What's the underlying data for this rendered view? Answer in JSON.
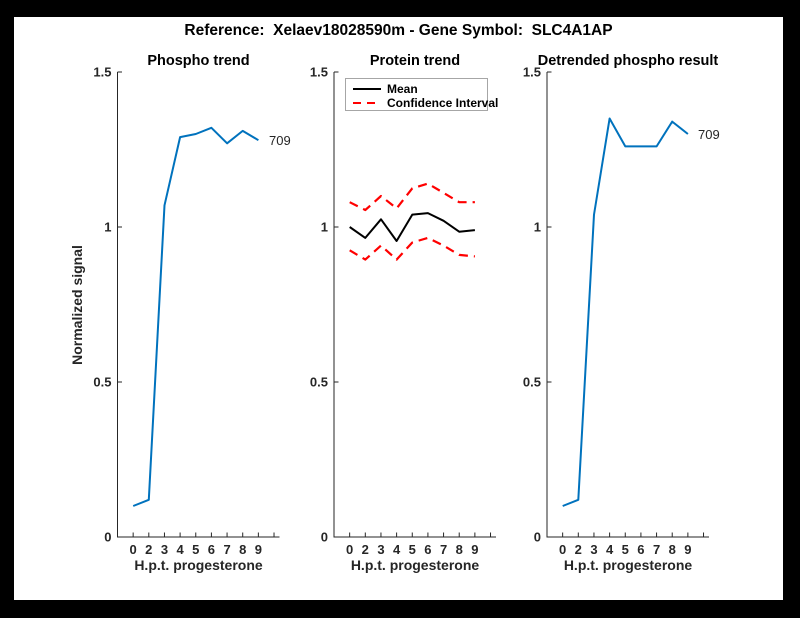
{
  "figure": {
    "title": "Reference:  Xelaev18028590m - Gene Symbol:  SLC4A1AP",
    "background": "#ffffff",
    "frame_color": "#000000",
    "axis_color": "#262626",
    "accent_blue": "#0072BD",
    "accent_red": "#ff0000",
    "accent_black": "#000000"
  },
  "chart_data": [
    {
      "type": "line",
      "title": "Phospho trend",
      "xlabel": "H.p.t. progesterone",
      "ylabel": "Normalized signal",
      "x_tick_labels": [
        "0",
        "2",
        "3",
        "4",
        "5",
        "6",
        "7",
        "8",
        "9"
      ],
      "y_tick_labels": [
        "0",
        "0.5",
        "1",
        "1.5"
      ],
      "y_ticks": [
        0,
        0.5,
        1,
        1.5
      ],
      "ylim": [
        0,
        1.5
      ],
      "grid": false,
      "end_label": "709",
      "series": [
        {
          "name": "phospho",
          "color": "#0072BD",
          "style": "solid",
          "values": [
            0.1,
            0.12,
            1.07,
            1.29,
            1.3,
            1.32,
            1.27,
            1.31,
            1.28
          ]
        }
      ]
    },
    {
      "type": "line",
      "title": "Protein trend",
      "xlabel": "H.p.t. progesterone",
      "ylabel": "",
      "x_tick_labels": [
        "0",
        "2",
        "3",
        "4",
        "5",
        "6",
        "7",
        "8",
        "9"
      ],
      "y_tick_labels": [
        "0",
        "0.5",
        "1",
        "1.5"
      ],
      "y_ticks": [
        0,
        0.5,
        1,
        1.5
      ],
      "ylim": [
        0,
        1.5
      ],
      "grid": false,
      "legend": [
        {
          "label": "Mean",
          "color": "#000000",
          "style": "solid"
        },
        {
          "label": "Confidence Interval",
          "color": "#ff0000",
          "style": "dashed"
        }
      ],
      "legend_position": "upper-left",
      "series": [
        {
          "name": "mean",
          "color": "#000000",
          "style": "solid",
          "values": [
            1.0,
            0.965,
            1.025,
            0.955,
            1.04,
            1.045,
            1.02,
            0.985,
            0.99
          ]
        },
        {
          "name": "ci-upper",
          "color": "#ff0000",
          "style": "dashed",
          "values": [
            1.08,
            1.055,
            1.1,
            1.06,
            1.125,
            1.14,
            1.11,
            1.08,
            1.08
          ]
        },
        {
          "name": "ci-lower",
          "color": "#ff0000",
          "style": "dashed",
          "values": [
            0.925,
            0.895,
            0.94,
            0.895,
            0.95,
            0.965,
            0.94,
            0.91,
            0.905
          ]
        }
      ]
    },
    {
      "type": "line",
      "title": "Detrended phospho result",
      "xlabel": "H.p.t. progesterone",
      "ylabel": "",
      "x_tick_labels": [
        "0",
        "2",
        "3",
        "4",
        "5",
        "6",
        "7",
        "8",
        "9"
      ],
      "y_tick_labels": [
        "0",
        "0.5",
        "1",
        "1.5"
      ],
      "y_ticks": [
        0,
        0.5,
        1,
        1.5
      ],
      "ylim": [
        0,
        1.5
      ],
      "grid": false,
      "end_label": "709",
      "series": [
        {
          "name": "detrended",
          "color": "#0072BD",
          "style": "solid",
          "values": [
            0.1,
            0.12,
            1.04,
            1.35,
            1.26,
            1.26,
            1.26,
            1.34,
            1.3
          ]
        }
      ]
    }
  ]
}
